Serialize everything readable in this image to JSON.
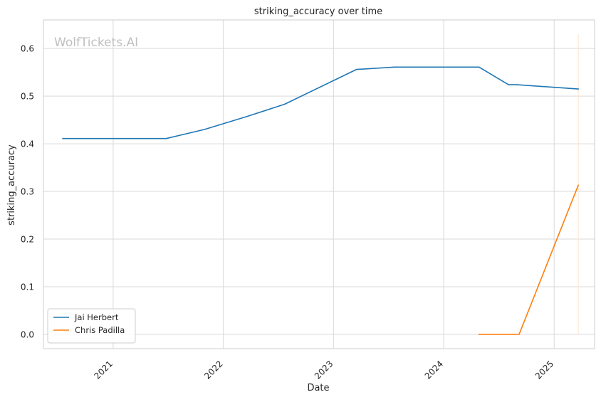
{
  "chart_data": {
    "type": "line",
    "title": "striking_accuracy over time",
    "xlabel": "Date",
    "ylabel": "striking_accuracy",
    "watermark": "WolfTickets.AI",
    "grid": true,
    "legend_position": "lower-left",
    "xlim": [
      "2020-05-15",
      "2025-05-15"
    ],
    "ylim": [
      -0.03,
      0.66
    ],
    "x_ticks": [
      {
        "date": "2021-01-01",
        "label": "2021"
      },
      {
        "date": "2022-01-01",
        "label": "2022"
      },
      {
        "date": "2023-01-01",
        "label": "2023"
      },
      {
        "date": "2024-01-01",
        "label": "2024"
      },
      {
        "date": "2025-01-01",
        "label": "2025"
      }
    ],
    "y_ticks": [
      {
        "value": 0.0,
        "label": "0.0"
      },
      {
        "value": 0.1,
        "label": "0.1"
      },
      {
        "value": 0.2,
        "label": "0.2"
      },
      {
        "value": 0.3,
        "label": "0.3"
      },
      {
        "value": 0.4,
        "label": "0.4"
      },
      {
        "value": 0.5,
        "label": "0.5"
      },
      {
        "value": 0.6,
        "label": "0.6"
      }
    ],
    "series": [
      {
        "name": "Jai Herbert",
        "color": "#1f77b4",
        "points": [
          {
            "x": "2020-07-18",
            "y": 0.411
          },
          {
            "x": "2021-06-26",
            "y": 0.411
          },
          {
            "x": "2021-10-30",
            "y": 0.43
          },
          {
            "x": "2022-03-19",
            "y": 0.457
          },
          {
            "x": "2022-07-23",
            "y": 0.483
          },
          {
            "x": "2023-03-18",
            "y": 0.556
          },
          {
            "x": "2023-07-22",
            "y": 0.561
          },
          {
            "x": "2024-04-27",
            "y": 0.561
          },
          {
            "x": "2024-08-03",
            "y": 0.524
          },
          {
            "x": "2024-08-31",
            "y": 0.524
          },
          {
            "x": "2025-03-22",
            "y": 0.515
          }
        ]
      },
      {
        "name": "Chris Padilla",
        "color": "#ff7f0e",
        "points": [
          {
            "x": "2024-04-27",
            "y": 0.0
          },
          {
            "x": "2024-09-07",
            "y": 0.0
          },
          {
            "x": "2025-03-22",
            "y": 0.313
          }
        ]
      }
    ],
    "vline": {
      "x": "2025-03-22",
      "color": "#ffe3c8"
    }
  }
}
